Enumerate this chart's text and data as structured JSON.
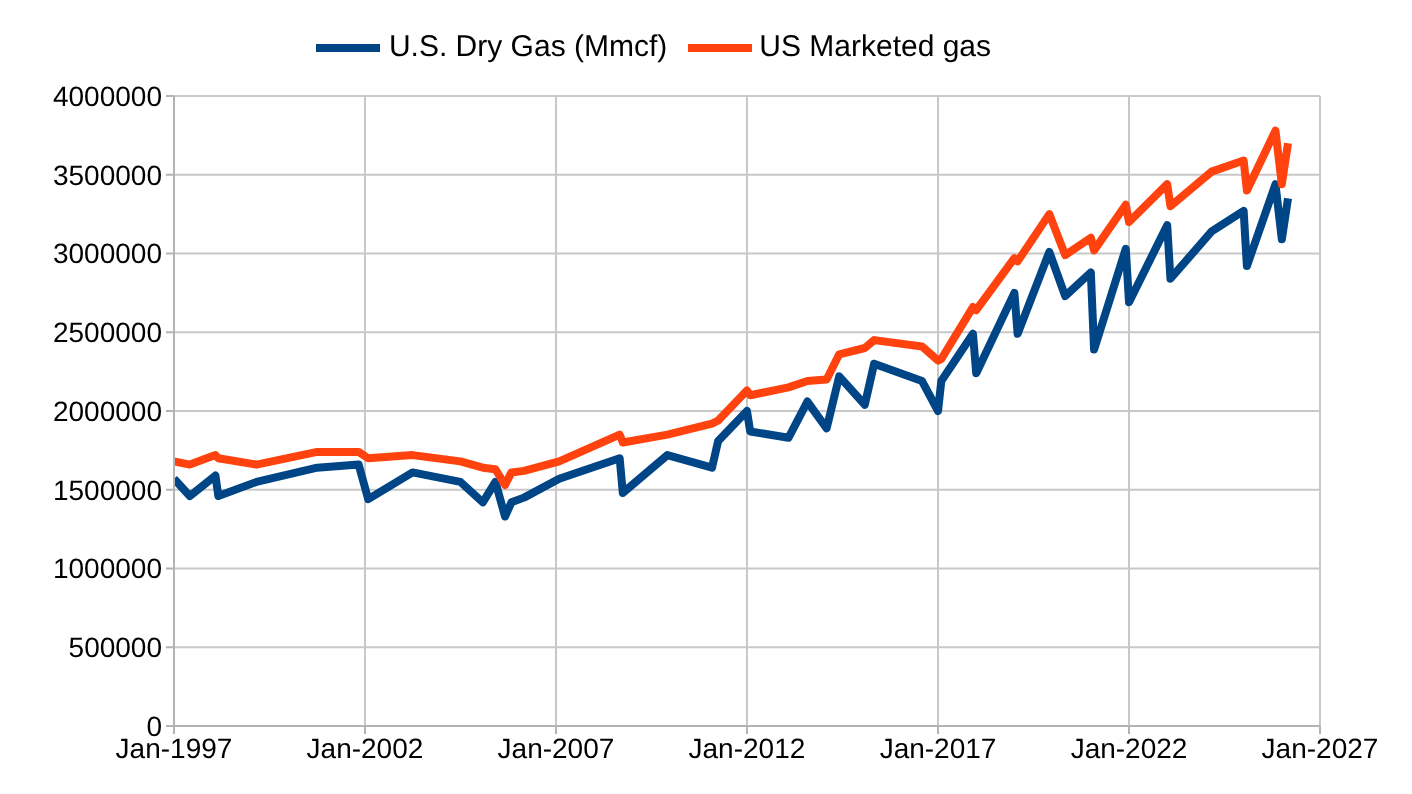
{
  "chart_data": {
    "type": "line",
    "x": [
      "1997-01",
      "1997-06",
      "1998-02",
      "1998-03",
      "1999-03",
      "2000-10",
      "2001-11",
      "2002-02",
      "2003-04",
      "2004-07",
      "2005-02",
      "2005-06",
      "2005-09",
      "2005-11",
      "2006-03",
      "2007-02",
      "2008-09",
      "2008-10",
      "2009-12",
      "2011-02",
      "2011-04",
      "2012-01",
      "2012-02",
      "2013-02",
      "2013-08",
      "2014-02",
      "2014-06",
      "2015-02",
      "2015-05",
      "2016-08",
      "2017-01",
      "2017-02",
      "2017-12",
      "2018-01",
      "2019-01",
      "2019-02",
      "2019-12",
      "2020-05",
      "2021-01",
      "2021-02",
      "2021-12",
      "2022-01",
      "2023-01",
      "2023-02",
      "2024-03",
      "2025-01",
      "2025-02",
      "2025-11",
      "2026-01",
      "2026-03"
    ],
    "series": [
      {
        "name": "U.S. Dry Gas (Mmcf)",
        "color": "#004586",
        "values": [
          1570000,
          1460000,
          1590000,
          1460000,
          1550000,
          1640000,
          1660000,
          1440000,
          1610000,
          1550000,
          1420000,
          1550000,
          1330000,
          1420000,
          1450000,
          1570000,
          1700000,
          1480000,
          1720000,
          1640000,
          1810000,
          2000000,
          1870000,
          1830000,
          2060000,
          1890000,
          2220000,
          2040000,
          2300000,
          2190000,
          2000000,
          2190000,
          2490000,
          2240000,
          2750000,
          2490000,
          3010000,
          2730000,
          2880000,
          2390000,
          3030000,
          2690000,
          3180000,
          2840000,
          3140000,
          3270000,
          2920000,
          3440000,
          3090000,
          3350000
        ]
      },
      {
        "name": "US Marketed gas",
        "color": "#ff420e",
        "values": [
          1680000,
          1660000,
          1720000,
          1700000,
          1660000,
          1740000,
          1740000,
          1700000,
          1720000,
          1680000,
          1640000,
          1630000,
          1530000,
          1610000,
          1620000,
          1680000,
          1850000,
          1800000,
          1850000,
          1920000,
          1940000,
          2130000,
          2100000,
          2150000,
          2190000,
          2200000,
          2360000,
          2400000,
          2450000,
          2410000,
          2320000,
          2330000,
          2660000,
          2640000,
          2970000,
          2950000,
          3250000,
          2990000,
          3100000,
          3020000,
          3310000,
          3200000,
          3440000,
          3300000,
          3520000,
          3590000,
          3400000,
          3780000,
          3440000,
          3700000
        ]
      }
    ],
    "xlim": [
      "1997-01",
      "2027-01"
    ],
    "xticks": [
      {
        "value": "1997-01",
        "label": "Jan-1997"
      },
      {
        "value": "2002-01",
        "label": "Jan-2002"
      },
      {
        "value": "2007-01",
        "label": "Jan-2007"
      },
      {
        "value": "2012-01",
        "label": "Jan-2012"
      },
      {
        "value": "2017-01",
        "label": "Jan-2017"
      },
      {
        "value": "2022-01",
        "label": "Jan-2022"
      },
      {
        "value": "2027-01",
        "label": "Jan-2027"
      }
    ],
    "ylim": [
      0,
      4000000
    ],
    "yticks": [
      0,
      500000,
      1000000,
      1500000,
      2000000,
      2500000,
      3000000,
      3500000,
      4000000
    ],
    "grid": true,
    "legend": "top",
    "marker": "none",
    "line_style": "solid"
  }
}
